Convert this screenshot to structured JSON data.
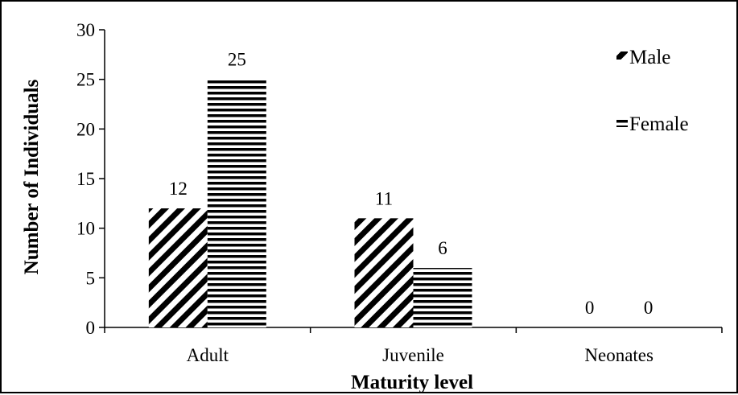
{
  "chart_data": {
    "type": "bar",
    "categories": [
      "Adult",
      "Juvenile",
      "Neonates"
    ],
    "series": [
      {
        "name": "Male",
        "values": [
          12,
          11,
          0
        ],
        "pattern": "diagonal"
      },
      {
        "name": "Female",
        "values": [
          25,
          6,
          0
        ],
        "pattern": "horizontal"
      }
    ],
    "xlabel": "Maturity level",
    "ylabel": "Number of Individuals",
    "ylim": [
      0,
      30
    ],
    "yticks": [
      0,
      5,
      10,
      15,
      20,
      25,
      30
    ],
    "data_labels": true,
    "grid": false,
    "legend_position": "top-right",
    "colors": {
      "ink": "#000000",
      "background": "#ffffff"
    }
  }
}
